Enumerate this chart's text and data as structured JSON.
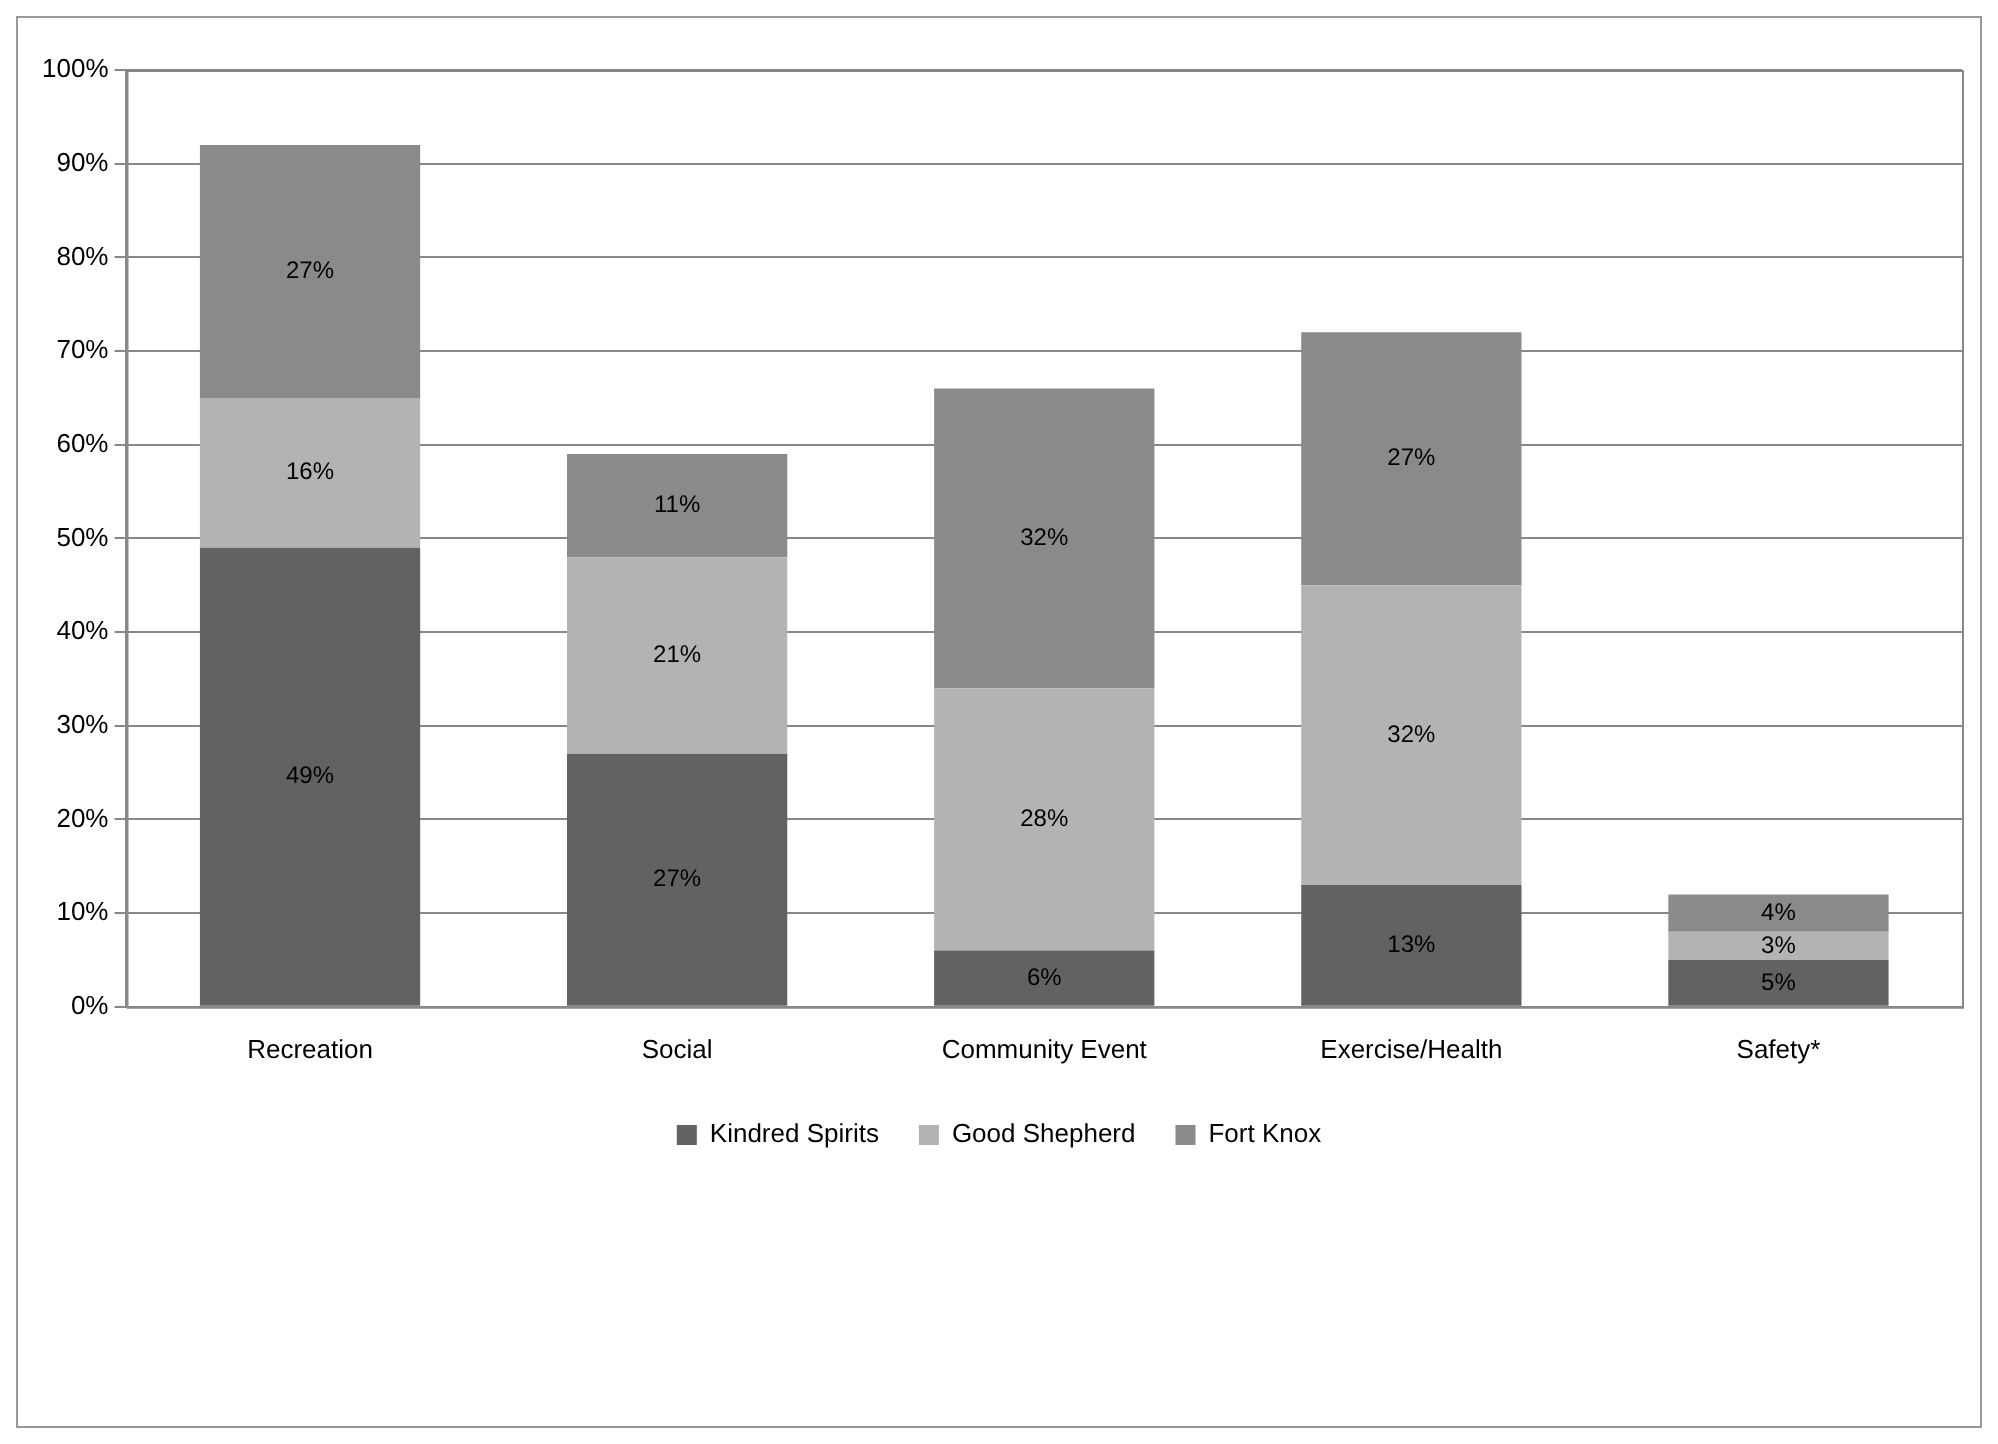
{
  "chart_data": {
    "type": "bar",
    "stacked": true,
    "categories": [
      "Recreation",
      "Social",
      "Community Event",
      "Exercise/Health",
      "Safety*"
    ],
    "series": [
      {
        "name": "Kindred Spirits",
        "color": "#626262",
        "values": [
          49,
          27,
          6,
          13,
          5
        ],
        "value_labels": [
          "49%",
          "27%",
          "6%",
          "13%",
          "5%"
        ]
      },
      {
        "name": "Good Shepherd",
        "color": "#b3b3b3",
        "values": [
          16,
          21,
          28,
          32,
          3
        ],
        "value_labels": [
          "16%",
          "21%",
          "28%",
          "32%",
          "3%"
        ]
      },
      {
        "name": "Fort Knox",
        "color": "#8a8a8a",
        "values": [
          27,
          11,
          32,
          27,
          4
        ],
        "value_labels": [
          "27%",
          "11%",
          "32%",
          "27%",
          "4%"
        ]
      }
    ],
    "ylim": [
      0,
      100
    ],
    "yticks": [
      {
        "value": 0,
        "label": "0%"
      },
      {
        "value": 10,
        "label": "10%"
      },
      {
        "value": 20,
        "label": "20%"
      },
      {
        "value": 30,
        "label": "30%"
      },
      {
        "value": 40,
        "label": "40%"
      },
      {
        "value": 50,
        "label": "50%"
      },
      {
        "value": 60,
        "label": "60%"
      },
      {
        "value": 70,
        "label": "70%"
      },
      {
        "value": 80,
        "label": "80%"
      },
      {
        "value": 90,
        "label": "90%"
      },
      {
        "value": 100,
        "label": "100%"
      }
    ],
    "grid": "y",
    "legend": "bottom"
  }
}
